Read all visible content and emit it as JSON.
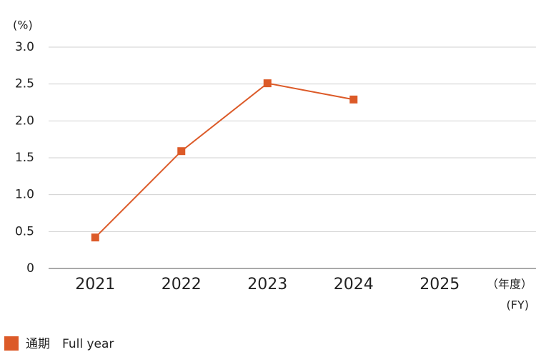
{
  "chart_data": {
    "type": "line",
    "y_unit": "(%)",
    "x_unit": "（年度）",
    "x_unit_en": "(FY)",
    "categories": [
      "2021",
      "2022",
      "2023",
      "2024",
      "2025"
    ],
    "series": [
      {
        "name": "通期　Full year",
        "color": "#dc5a28",
        "values": [
          0.42,
          1.59,
          2.51,
          2.29,
          null
        ]
      }
    ],
    "ylim": [
      0,
      3
    ],
    "yticks": [
      0,
      0.5,
      {
        "value": 1,
        "label": "1.0"
      },
      1.5,
      {
        "value": 2,
        "label": "2.0"
      },
      2.5,
      {
        "value": 3,
        "label": "3.0"
      }
    ],
    "grid": true
  }
}
